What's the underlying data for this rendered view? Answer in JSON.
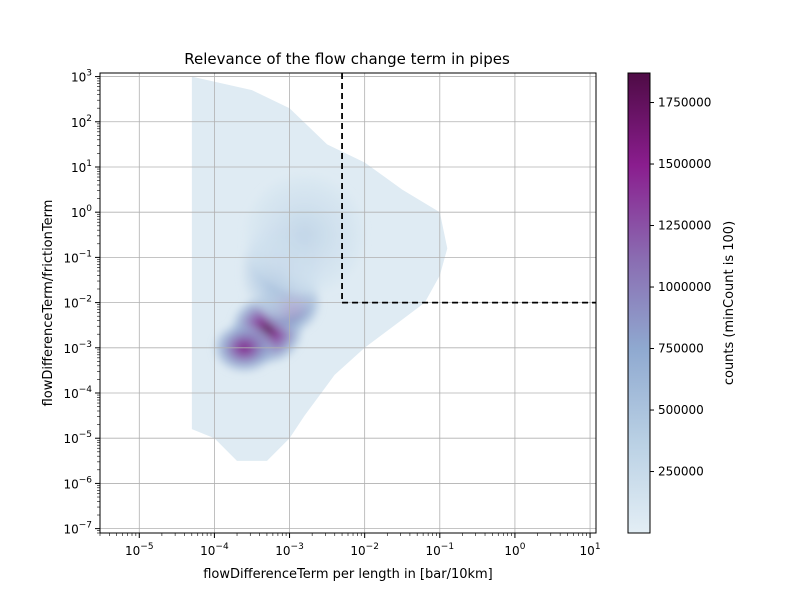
{
  "chart_data": {
    "type": "heatmap",
    "subtype": "hexbin",
    "title": "Relevance of the flow change term in pipes",
    "xlabel": "flowDifferenceTerm per length in [bar/10km]",
    "ylabel": "flowDifferenceTerm/frictionTerm",
    "x_scale": "log",
    "y_scale": "log",
    "xlim": [
      3e-06,
      12
    ],
    "ylim": [
      8e-08,
      1200
    ],
    "x_ticks": [
      {
        "value": 1e-05,
        "base": "10",
        "exp": "−5"
      },
      {
        "value": 0.0001,
        "base": "10",
        "exp": "−4"
      },
      {
        "value": 0.001,
        "base": "10",
        "exp": "−3"
      },
      {
        "value": 0.01,
        "base": "10",
        "exp": "−2"
      },
      {
        "value": 0.1,
        "base": "10",
        "exp": "−1"
      },
      {
        "value": 1,
        "base": "10",
        "exp": "0"
      },
      {
        "value": 10,
        "base": "10",
        "exp": "1"
      }
    ],
    "y_ticks": [
      {
        "value": 1e-07,
        "base": "10",
        "exp": "−7"
      },
      {
        "value": 1e-06,
        "base": "10",
        "exp": "−6"
      },
      {
        "value": 1e-05,
        "base": "10",
        "exp": "−5"
      },
      {
        "value": 0.0001,
        "base": "10",
        "exp": "−4"
      },
      {
        "value": 0.001,
        "base": "10",
        "exp": "−3"
      },
      {
        "value": 0.01,
        "base": "10",
        "exp": "−2"
      },
      {
        "value": 0.1,
        "base": "10",
        "exp": "−1"
      },
      {
        "value": 1,
        "base": "10",
        "exp": "0"
      },
      {
        "value": 10,
        "base": "10",
        "exp": "1"
      },
      {
        "value": 100,
        "base": "10",
        "exp": "2"
      },
      {
        "value": 1000,
        "base": "10",
        "exp": "3"
      }
    ],
    "grid": true,
    "colormap": [
      "#e3eef5",
      "#b9d0e4",
      "#8fa9d0",
      "#8a6bb1",
      "#8a1d8e",
      "#4e0b45"
    ],
    "colorbar": {
      "label": "counts (minCount is 100)",
      "min": 100,
      "max": 1870000,
      "ticks": [
        250000,
        500000,
        750000,
        1000000,
        1250000,
        1500000,
        1750000
      ],
      "tick_labels": [
        "250000",
        "500000",
        "750000",
        "1000000",
        "1250000",
        "1500000",
        "1750000"
      ]
    },
    "threshold_lines": {
      "style": "dashed",
      "color": "#000000",
      "vertical_x": 0.005,
      "horizontal_y": 0.01
    },
    "density_clusters": [
      {
        "x_log10": -3.3,
        "y_log10": -2.6,
        "peak": 1870000,
        "spread_x": 0.35,
        "spread_y": 0.55
      },
      {
        "x_log10": -3.0,
        "y_log10": -2.0,
        "peak": 1500000,
        "spread_x": 0.3,
        "spread_y": 0.5
      },
      {
        "x_log10": -3.6,
        "y_log10": -3.0,
        "peak": 1600000,
        "spread_x": 0.3,
        "spread_y": 0.4
      },
      {
        "x_log10": -3.1,
        "y_log10": -1.3,
        "peak": 700000,
        "spread_x": 0.4,
        "spread_y": 0.8
      },
      {
        "x_log10": -2.8,
        "y_log10": -0.5,
        "peak": 300000,
        "spread_x": 0.6,
        "spread_y": 1.0
      }
    ],
    "region_outline_log10": [
      [
        -4.3,
        3.0
      ],
      [
        -3.5,
        2.7
      ],
      [
        -3.0,
        2.3
      ],
      [
        -2.5,
        1.5
      ],
      [
        -2.0,
        1.1
      ],
      [
        -1.5,
        0.5
      ],
      [
        -1.0,
        0.0
      ],
      [
        -0.9,
        -0.8
      ],
      [
        -1.0,
        -1.4
      ],
      [
        -1.2,
        -2.0
      ],
      [
        -1.6,
        -2.5
      ],
      [
        -2.0,
        -3.0
      ],
      [
        -2.4,
        -3.6
      ],
      [
        -2.8,
        -4.5
      ],
      [
        -3.0,
        -5.0
      ],
      [
        -3.3,
        -5.5
      ],
      [
        -3.7,
        -5.5
      ],
      [
        -4.0,
        -5.0
      ],
      [
        -4.3,
        -4.8
      ],
      [
        -4.3,
        0.0
      ]
    ]
  }
}
